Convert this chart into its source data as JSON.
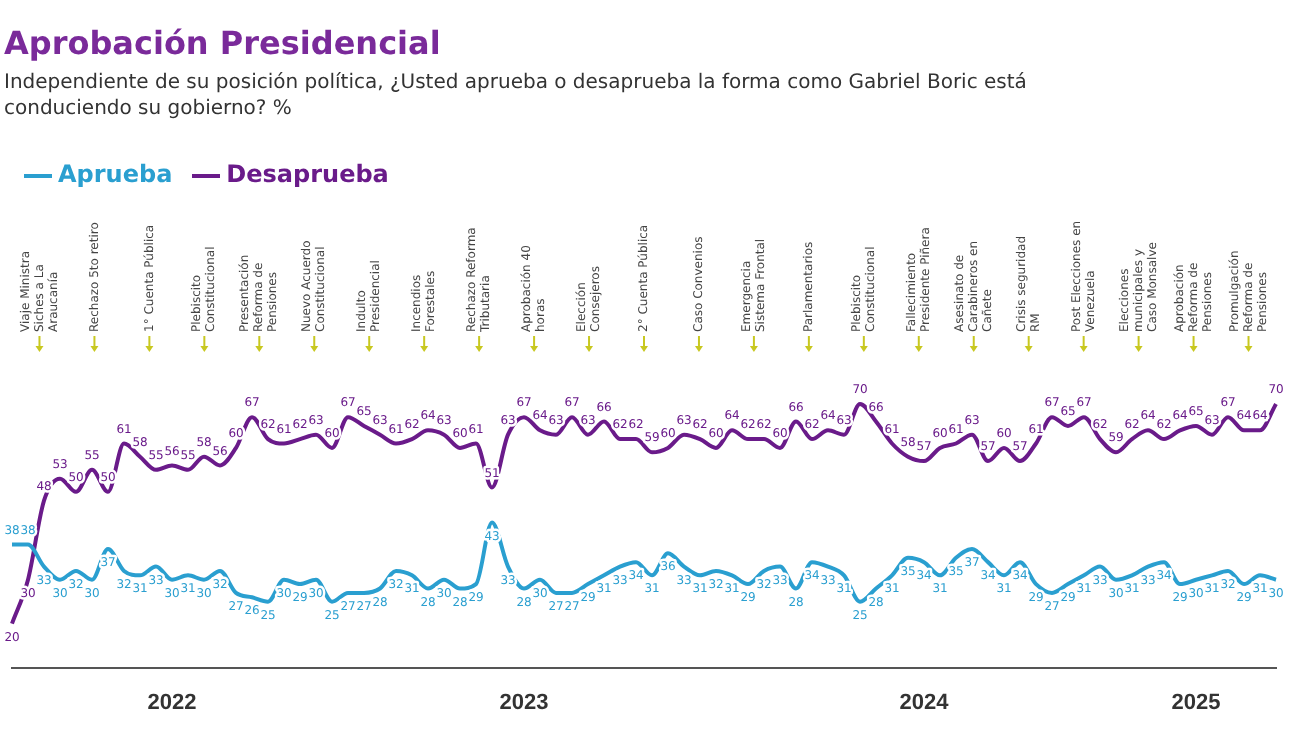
{
  "chart_data": {
    "type": "line",
    "title": "Aprobación Presidencial",
    "subtitle": "Independiente de su posición política, ¿Usted aprueba o desaprueba la forma como Gabriel Boric está conduciendo su gobierno? %",
    "categories": [
      null,
      null,
      null,
      null,
      null,
      null,
      null,
      null,
      null,
      null,
      "2022",
      null,
      null,
      null,
      null,
      null,
      null,
      null,
      null,
      null,
      null,
      null,
      null,
      null,
      null,
      null,
      null,
      null,
      null,
      null,
      null,
      null,
      "2023",
      null,
      null,
      null,
      null,
      null,
      null,
      null,
      null,
      null,
      null,
      null,
      null,
      null,
      null,
      null,
      null,
      null,
      null,
      null,
      null,
      null,
      null,
      null,
      null,
      "2024",
      null,
      null,
      null,
      null,
      null,
      null,
      null,
      null,
      null,
      null,
      null,
      null,
      null,
      null,
      null,
      null,
      "2025",
      null,
      null,
      null,
      null,
      null
    ],
    "series": [
      {
        "name": "Aprueba",
        "color": "#2a9fd0",
        "values": [
          38,
          38,
          33,
          30,
          32,
          30,
          37,
          32,
          31,
          33,
          30,
          31,
          30,
          32,
          27,
          26,
          25,
          30,
          29,
          30,
          25,
          27,
          27,
          28,
          32,
          31,
          28,
          30,
          28,
          29,
          43,
          33,
          28,
          30,
          27,
          27,
          29,
          31,
          33,
          34,
          31,
          36,
          33,
          31,
          32,
          31,
          29,
          32,
          33,
          28,
          34,
          33,
          31,
          25,
          28,
          31,
          35,
          34,
          31,
          35,
          37,
          34,
          31,
          34,
          29,
          27,
          29,
          31,
          33,
          30,
          31,
          33,
          34,
          29,
          30,
          31,
          32,
          29,
          31,
          30
        ]
      },
      {
        "name": "Desaprueba",
        "color": "#6a1b8a",
        "values": [
          20,
          30,
          48,
          53,
          50,
          55,
          50,
          61,
          58,
          55,
          56,
          55,
          58,
          56,
          60,
          67,
          62,
          61,
          62,
          63,
          60,
          67,
          65,
          63,
          61,
          62,
          64,
          63,
          60,
          61,
          51,
          63,
          67,
          64,
          63,
          67,
          63,
          66,
          62,
          62,
          59,
          60,
          63,
          62,
          60,
          64,
          62,
          62,
          60,
          66,
          62,
          64,
          63,
          70,
          66,
          61,
          58,
          57,
          60,
          61,
          63,
          57,
          60,
          57,
          61,
          67,
          65,
          67,
          62,
          59,
          62,
          64,
          62,
          64,
          65,
          63,
          67,
          64,
          64,
          70
        ]
      }
    ],
    "data_labels": true,
    "legend": "top left",
    "annotations": [
      "Viaje Ministra Siches a La Araucanía",
      "Rechazo 5to retiro",
      "1° Cuenta Pública",
      "Plebiscito Constitucional",
      "Presentación Reforma de Pensiones",
      "Nuevo Acuerdo Constitucional",
      "Indulto Presidencial",
      "Incendios Forestales",
      "Rechazo Reforma Tributaria",
      "Aprobación 40 horas",
      "Elección Consejeros",
      "2° Cuenta Pública",
      "Caso Convenios",
      "Emergencia Sistema Frontal",
      "Parlamentarios",
      "Plebiscito Constitucional",
      "Fallecimiento Presidente Piñera",
      "Asesinato de Carabineros en Cañete",
      "Crisis seguridad RM",
      "Post Elecciones en Venezuela",
      "Elecciones municipales y Caso Monsalve",
      "Aprobación Reforma de Pensiones",
      "Promulgación Reforma de Pensiones"
    ]
  }
}
